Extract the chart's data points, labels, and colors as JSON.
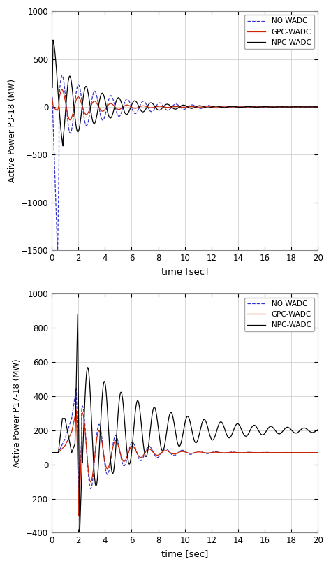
{
  "fig_width": 4.74,
  "fig_height": 8.1,
  "dpi": 100,
  "background_color": "#ffffff",
  "grid_color": "#c8c8c8",
  "subplot1": {
    "ylabel": "Active Power P3-18 (MW)",
    "xlabel": "time [sec]",
    "ylim": [
      -1500,
      1000
    ],
    "xlim": [
      0,
      20
    ],
    "yticks": [
      -1500,
      -1000,
      -500,
      0,
      500,
      1000
    ],
    "xticks": [
      0,
      2,
      4,
      6,
      8,
      10,
      12,
      14,
      16,
      18,
      20
    ],
    "legend_labels": [
      "NO WADC",
      "GPC-WADC",
      "NPC-WADC"
    ],
    "no_wadc_color": "#3333cc",
    "gpc_wadc_color": "#cc2200",
    "npc_wadc_color": "#000000"
  },
  "subplot2": {
    "ylabel": "Active Power P17-18 (MW)",
    "xlabel": "time [sec]",
    "ylim": [
      -400,
      1000
    ],
    "xlim": [
      0,
      20
    ],
    "yticks": [
      -400,
      -200,
      0,
      200,
      400,
      600,
      800,
      1000
    ],
    "xticks": [
      0,
      2,
      4,
      6,
      8,
      10,
      12,
      14,
      16,
      18,
      20
    ],
    "legend_labels": [
      "NO WADC",
      "GPC-WADC",
      "NPC-WADC"
    ],
    "no_wadc_color": "#3333cc",
    "gpc_wadc_color": "#cc2200",
    "npc_wadc_color": "#000000"
  }
}
